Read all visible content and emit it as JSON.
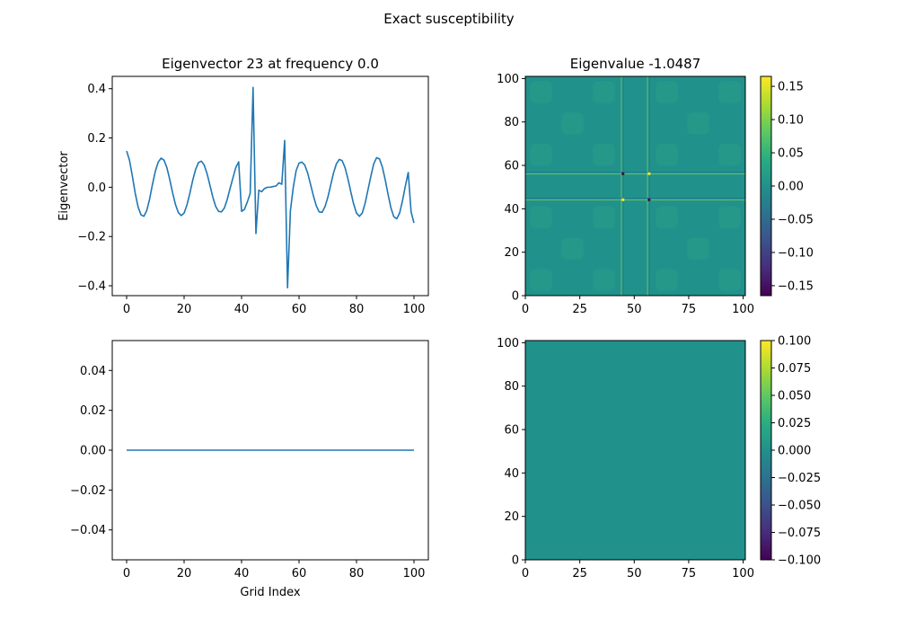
{
  "suptitle": "Exact susceptibility",
  "colors": {
    "line": "#1f77b4",
    "heatmap_zero": "#21918c"
  },
  "chart_data": [
    {
      "id": "line-top",
      "type": "line",
      "title": "Eigenvector 23 at frequency 0.0",
      "xlabel": "",
      "ylabel": "Eigenvector",
      "xlim": [
        -5,
        105
      ],
      "ylim": [
        -0.44,
        0.45
      ],
      "xticks": [
        0,
        20,
        40,
        60,
        80,
        100
      ],
      "xtick_labels": [
        "0",
        "20",
        "40",
        "60",
        "80",
        "100"
      ],
      "yticks": [
        -0.4,
        -0.2,
        0.0,
        0.2,
        0.4
      ],
      "ytick_labels": [
        "−0.4",
        "−0.2",
        "0.0",
        "0.2",
        "0.4"
      ],
      "series": [
        {
          "x": [
            0,
            1,
            2,
            3,
            4,
            5,
            6,
            7,
            8,
            9,
            10,
            11,
            12,
            13,
            14,
            15,
            16,
            17,
            18,
            19,
            20,
            21,
            22,
            23,
            24,
            25,
            26,
            27,
            28,
            29,
            30,
            31,
            32,
            33,
            34,
            35,
            36,
            37,
            38,
            39,
            40,
            41,
            42,
            43,
            44,
            45,
            46,
            47,
            48,
            49,
            50,
            51,
            52,
            53,
            54,
            55,
            56,
            57,
            58,
            59,
            60,
            61,
            62,
            63,
            64,
            65,
            66,
            67,
            68,
            69,
            70,
            71,
            72,
            73,
            74,
            75,
            76,
            77,
            78,
            79,
            80,
            81,
            82,
            83,
            84,
            85,
            86,
            87,
            88,
            89,
            90,
            91,
            92,
            93,
            94,
            95,
            96,
            97,
            98,
            99,
            100
          ],
          "y": [
            0.147,
            0.11,
            0.045,
            -0.025,
            -0.08,
            -0.112,
            -0.118,
            -0.095,
            -0.048,
            0.012,
            0.065,
            0.102,
            0.118,
            0.11,
            0.08,
            0.032,
            -0.022,
            -0.07,
            -0.103,
            -0.115,
            -0.105,
            -0.072,
            -0.025,
            0.028,
            0.072,
            0.1,
            0.106,
            0.09,
            0.055,
            0.008,
            -0.04,
            -0.078,
            -0.098,
            -0.1,
            -0.085,
            -0.05,
            -0.005,
            0.038,
            0.08,
            0.103,
            -0.098,
            -0.09,
            -0.06,
            -0.025,
            0.405,
            -0.188,
            -0.012,
            -0.018,
            -0.005,
            0.0,
            0.0,
            0.003,
            0.005,
            0.018,
            0.012,
            0.19,
            -0.408,
            -0.095,
            0.0,
            0.068,
            0.098,
            0.102,
            0.09,
            0.058,
            0.012,
            -0.035,
            -0.075,
            -0.1,
            -0.102,
            -0.08,
            -0.042,
            0.008,
            0.058,
            0.095,
            0.113,
            0.108,
            0.08,
            0.035,
            -0.018,
            -0.068,
            -0.105,
            -0.118,
            -0.105,
            -0.065,
            -0.01,
            0.045,
            0.095,
            0.12,
            0.115,
            0.082,
            0.03,
            -0.03,
            -0.085,
            -0.12,
            -0.128,
            -0.105,
            -0.055,
            0.005,
            0.06,
            -0.1,
            -0.145
          ]
        }
      ]
    },
    {
      "id": "line-bottom",
      "type": "line",
      "title": "",
      "xlabel": "Grid Index",
      "ylabel": "",
      "xlim": [
        -5,
        105
      ],
      "ylim": [
        -0.055,
        0.055
      ],
      "xticks": [
        0,
        20,
        40,
        60,
        80,
        100
      ],
      "xtick_labels": [
        "0",
        "20",
        "40",
        "60",
        "80",
        "100"
      ],
      "yticks": [
        -0.04,
        -0.02,
        0.0,
        0.02,
        0.04
      ],
      "ytick_labels": [
        "−0.04",
        "−0.02",
        "0.00",
        "0.02",
        "0.04"
      ],
      "series": [
        {
          "x": [
            0,
            100
          ],
          "y": [
            0.0,
            0.0
          ]
        }
      ]
    },
    {
      "id": "heatmap-top",
      "type": "heatmap",
      "title": "Eigenvalue -1.0487",
      "xlim": [
        0,
        101
      ],
      "ylim": [
        0,
        101
      ],
      "xticks": [
        0,
        25,
        50,
        75,
        100
      ],
      "xtick_labels": [
        "0",
        "25",
        "50",
        "75",
        "100"
      ],
      "yticks": [
        0,
        20,
        40,
        60,
        80,
        100
      ],
      "ytick_labels": [
        "0",
        "20",
        "40",
        "60",
        "80",
        "100"
      ],
      "colormap": "viridis",
      "clim": [
        -0.165,
        0.165
      ],
      "colorbar_ticks": [
        0.15,
        0.1,
        0.05,
        0.0,
        -0.05,
        -0.1,
        -0.15
      ],
      "colorbar_labels": [
        "0.15",
        "0.10",
        "0.05",
        "0.00",
        "−0.05",
        "−0.10",
        "−0.15"
      ],
      "features": {
        "bright_rows": [
          44,
          56
        ],
        "bright_cols": [
          44,
          56
        ]
      }
    },
    {
      "id": "heatmap-bottom",
      "type": "heatmap",
      "title": "",
      "xlim": [
        0,
        101
      ],
      "ylim": [
        0,
        101
      ],
      "xticks": [
        0,
        25,
        50,
        75,
        100
      ],
      "xtick_labels": [
        "0",
        "25",
        "50",
        "75",
        "100"
      ],
      "yticks": [
        0,
        20,
        40,
        60,
        80,
        100
      ],
      "ytick_labels": [
        "0",
        "20",
        "40",
        "60",
        "80",
        "100"
      ],
      "colormap": "viridis",
      "clim": [
        -0.1,
        0.1
      ],
      "value": 0.0,
      "colorbar_ticks": [
        0.1,
        0.075,
        0.05,
        0.025,
        0.0,
        -0.025,
        -0.05,
        -0.075,
        -0.1
      ],
      "colorbar_labels": [
        "0.100",
        "0.075",
        "0.050",
        "0.025",
        "0.000",
        "−0.025",
        "−0.050",
        "−0.075",
        "−0.100"
      ]
    }
  ]
}
